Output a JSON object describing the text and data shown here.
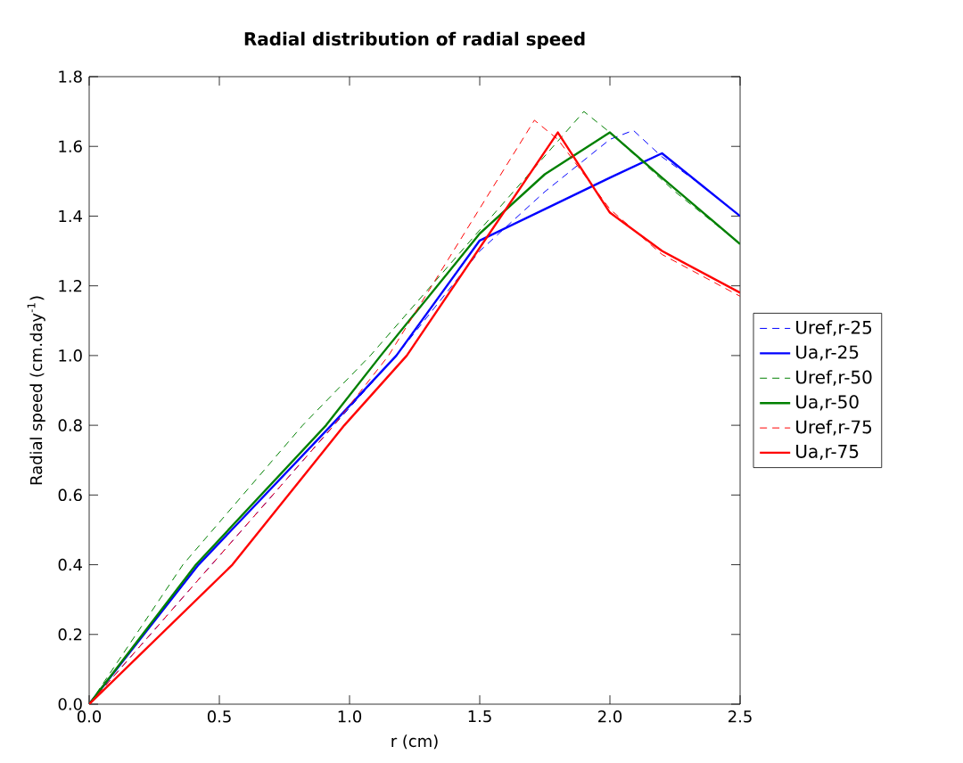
{
  "chart_data": {
    "type": "line",
    "title": "Radial distribution of radial speed",
    "xlabel": "r (cm)",
    "ylabel": "Radial speed (cm.day$^{-1}$)",
    "xlim": [
      0,
      2.5
    ],
    "ylim": [
      0,
      1.8
    ],
    "xticks": [
      {
        "value": 0,
        "label": "0.0"
      },
      {
        "value": 0.5,
        "label": "0.5"
      },
      {
        "value": 1,
        "label": "1.0"
      },
      {
        "value": 1.5,
        "label": "1.5"
      },
      {
        "value": 2,
        "label": "2.0"
      },
      {
        "value": 2.5,
        "label": "2.5"
      }
    ],
    "yticks": [
      {
        "value": 0,
        "label": "0.0"
      },
      {
        "value": 0.2,
        "label": "0.2"
      },
      {
        "value": 0.4,
        "label": "0.4"
      },
      {
        "value": 0.6,
        "label": "0.6"
      },
      {
        "value": 0.8,
        "label": "0.8"
      },
      {
        "value": 1,
        "label": "1.0"
      },
      {
        "value": 1.2,
        "label": "1.2"
      },
      {
        "value": 1.4,
        "label": "1.4"
      },
      {
        "value": 1.6,
        "label": "1.6"
      },
      {
        "value": 1.8,
        "label": "1.8"
      }
    ],
    "grid": false,
    "legend": "right",
    "marker": "none",
    "series": [
      {
        "name": "Uref,r-25",
        "color": "#0000ff",
        "line_style": "dashed",
        "x": [
          0,
          0.47,
          0.94,
          1.18,
          1.5,
          1.75,
          2.0,
          2.09,
          2.2,
          2.35,
          2.5
        ],
        "values": [
          0,
          0.4,
          0.8,
          1.0,
          1.3,
          1.47,
          1.62,
          1.646,
          1.57,
          1.49,
          1.4
        ]
      },
      {
        "name": "Ua,r-25",
        "color": "#0000ff",
        "line_style": "solid",
        "x": [
          0,
          0.42,
          0.93,
          1.18,
          1.5,
          1.75,
          2.0,
          2.2,
          2.35,
          2.5
        ],
        "values": [
          0,
          0.4,
          0.8,
          1.0,
          1.33,
          1.42,
          1.51,
          1.58,
          1.49,
          1.4
        ]
      },
      {
        "name": "Uref,r-50",
        "color": "#008000",
        "line_style": "dashed",
        "x": [
          0,
          0.36,
          0.82,
          1.08,
          1.5,
          1.9,
          2.0,
          2.25,
          2.5
        ],
        "values": [
          0,
          0.4,
          0.8,
          1.0,
          1.36,
          1.7,
          1.64,
          1.47,
          1.32
        ]
      },
      {
        "name": "Ua,r-50",
        "color": "#008000",
        "line_style": "solid",
        "x": [
          0,
          0.41,
          0.91,
          1.12,
          1.5,
          1.75,
          2.0,
          2.2,
          2.5
        ],
        "values": [
          0,
          0.4,
          0.8,
          1.0,
          1.35,
          1.52,
          1.64,
          1.51,
          1.32
        ]
      },
      {
        "name": "Uref,r-75",
        "color": "#ff0000",
        "line_style": "dashed",
        "x": [
          0,
          0.47,
          0.94,
          1.15,
          1.71,
          1.8,
          2.0,
          2.2,
          2.5
        ],
        "values": [
          0,
          0.4,
          0.8,
          1.0,
          1.675,
          1.62,
          1.42,
          1.29,
          1.17
        ]
      },
      {
        "name": "Ua,r-75",
        "color": "#ff0000",
        "line_style": "solid",
        "x": [
          0,
          0.55,
          0.98,
          1.22,
          1.8,
          2.0,
          2.2,
          2.5
        ],
        "values": [
          0,
          0.4,
          0.8,
          1.0,
          1.64,
          1.41,
          1.3,
          1.18
        ]
      }
    ]
  }
}
